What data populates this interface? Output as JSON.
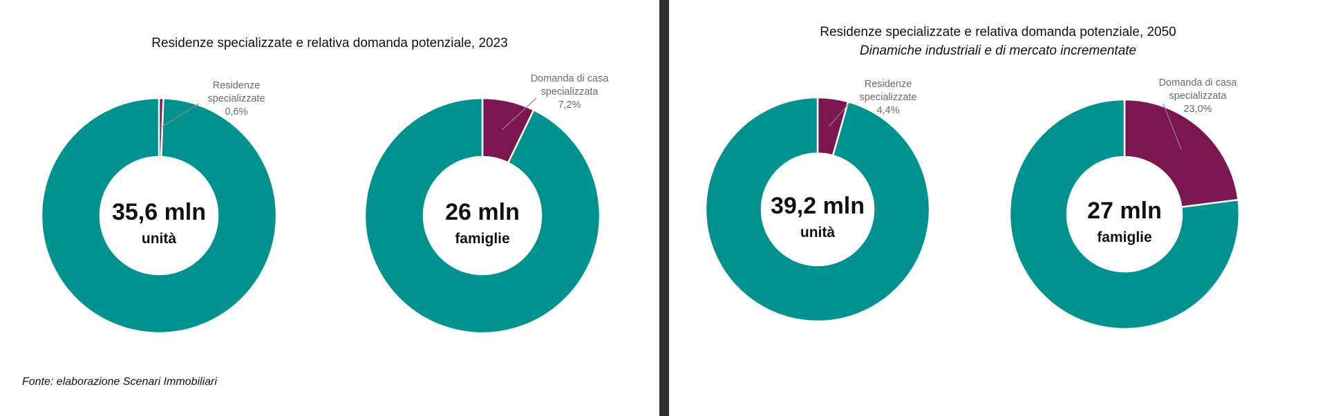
{
  "colors": {
    "main": "#00928F",
    "highlight": "#7B1650",
    "leader": "#8a8a8a"
  },
  "panels": {
    "left": {
      "title": "Residenze specializzate e relativa domanda potenziale, 2023",
      "subtitle": "",
      "source": "Fonte: elaborazione Scenari Immobiliari"
    },
    "right": {
      "title": "Residenze specializzate e relativa domanda potenziale, 2050",
      "subtitle": "Dinamiche industriali e di mercato incrementate"
    }
  },
  "chart_data": [
    {
      "type": "pie",
      "title": "Residenze specializzate e relativa domanda potenziale, 2023",
      "center_value": "35,6 mln",
      "center_unit": "unità",
      "slices": [
        {
          "label": "Residenze specializzate",
          "value": 0.6,
          "value_label": "0,6%",
          "label_lines": [
            "Residenze",
            "specializzate",
            "0,6%"
          ]
        },
        {
          "label": "",
          "value": 99.4
        }
      ]
    },
    {
      "type": "pie",
      "title": "Residenze specializzate e relativa domanda potenziale, 2023",
      "center_value": "26 mln",
      "center_unit": "famiglie",
      "slices": [
        {
          "label": "Domanda di casa specializzata",
          "value": 7.2,
          "value_label": "7,2%",
          "label_lines": [
            "Domanda di casa",
            "specializzata",
            "7,2%"
          ]
        },
        {
          "label": "",
          "value": 92.8
        }
      ]
    },
    {
      "type": "pie",
      "title": "Residenze specializzate e relativa domanda potenziale, 2050",
      "center_value": "39,2 mln",
      "center_unit": "unità",
      "slices": [
        {
          "label": "Residenze specializzate",
          "value": 4.4,
          "value_label": "4,4%",
          "label_lines": [
            "Residenze",
            "specializzate",
            "4,4%"
          ]
        },
        {
          "label": "",
          "value": 95.6
        }
      ]
    },
    {
      "type": "pie",
      "title": "Residenze specializzate e relativa domanda potenziale, 2050",
      "center_value": "27 mln",
      "center_unit": "famiglie",
      "slices": [
        {
          "label": "Domanda di casa specializzata",
          "value": 23.0,
          "value_label": "23,0%",
          "label_lines": [
            "Domanda di casa",
            "specializzata",
            "23,0%"
          ]
        },
        {
          "label": "",
          "value": 77.0
        }
      ]
    }
  ]
}
